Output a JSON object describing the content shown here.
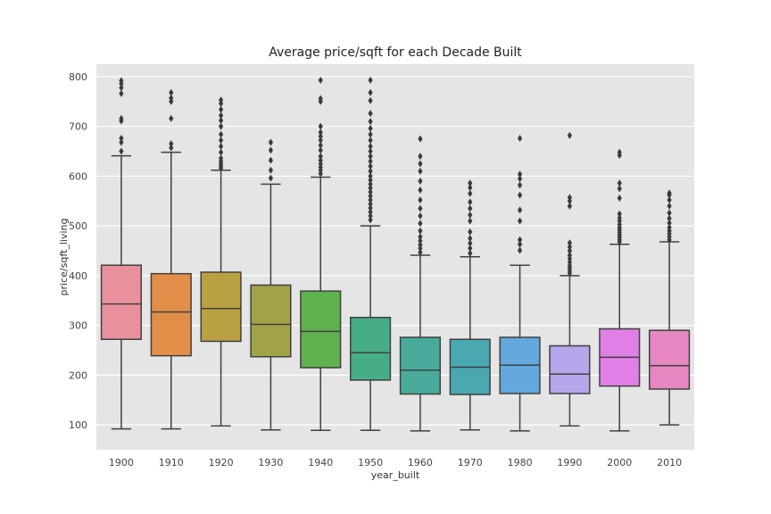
{
  "chart_data": {
    "type": "box",
    "title": "Average price/sqft for each Decade Built",
    "xlabel": "year_built",
    "ylabel": "price/sqft_living",
    "ylim": [
      50,
      825
    ],
    "yticks": [
      100,
      200,
      300,
      400,
      500,
      600,
      700,
      800
    ],
    "grid": true,
    "categories": [
      "1900",
      "1910",
      "1920",
      "1930",
      "1940",
      "1950",
      "1960",
      "1970",
      "1980",
      "1990",
      "2000",
      "2010"
    ],
    "colors": [
      "#e8909c",
      "#e38e48",
      "#b8a043",
      "#a1a347",
      "#5fb04e",
      "#47ad84",
      "#48ab9b",
      "#49a8b0",
      "#62a8dd",
      "#b6a5ea",
      "#e080e6",
      "#e687c2"
    ],
    "boxes": [
      {
        "whislo": 92,
        "q1": 272,
        "med": 343,
        "q3": 421,
        "whishi": 641,
        "fliers": [
          650,
          668,
          676,
          711,
          716,
          766,
          778,
          786,
          792
        ]
      },
      {
        "whislo": 92,
        "q1": 239,
        "med": 327,
        "q3": 404,
        "whishi": 648,
        "fliers": [
          657,
          665,
          716,
          750,
          757,
          768
        ]
      },
      {
        "whislo": 98,
        "q1": 268,
        "med": 334,
        "q3": 407,
        "whishi": 612,
        "fliers": [
          616,
          620,
          625,
          630,
          636,
          648,
          660,
          672,
          684,
          700,
          712,
          722,
          734,
          746,
          753
        ]
      },
      {
        "whislo": 90,
        "q1": 237,
        "med": 302,
        "q3": 381,
        "whishi": 584,
        "fliers": [
          596,
          612,
          632,
          652,
          668
        ]
      },
      {
        "whislo": 89,
        "q1": 215,
        "med": 288,
        "q3": 369,
        "whishi": 598,
        "fliers": [
          605,
          612,
          618,
          625,
          632,
          640,
          652,
          662,
          672,
          680,
          688,
          700,
          750,
          756,
          793
        ]
      },
      {
        "whislo": 89,
        "q1": 190,
        "med": 245,
        "q3": 316,
        "whishi": 500,
        "fliers": [
          512,
          520,
          528,
          536,
          544,
          552,
          560,
          568,
          576,
          584,
          592,
          600,
          610,
          620,
          630,
          640,
          650,
          660,
          672,
          684,
          696,
          710,
          726,
          752,
          768,
          793
        ]
      },
      {
        "whislo": 88,
        "q1": 162,
        "med": 210,
        "q3": 276,
        "whishi": 441,
        "fliers": [
          447,
          455,
          462,
          470,
          478,
          490,
          505,
          520,
          535,
          552,
          572,
          590,
          610,
          625,
          640,
          675
        ]
      },
      {
        "whislo": 90,
        "q1": 161,
        "med": 216,
        "q3": 272,
        "whishi": 438,
        "fliers": [
          445,
          455,
          465,
          475,
          488,
          510,
          522,
          535,
          548,
          565,
          577,
          586
        ]
      },
      {
        "whislo": 88,
        "q1": 163,
        "med": 220,
        "q3": 276,
        "whishi": 421,
        "fliers": [
          451,
          463,
          472,
          510,
          532,
          562,
          582,
          595,
          604,
          676
        ]
      },
      {
        "whislo": 98,
        "q1": 163,
        "med": 202,
        "q3": 259,
        "whishi": 400,
        "fliers": [
          405,
          410,
          415,
          420,
          427,
          434,
          441,
          450,
          458,
          466,
          540,
          550,
          557,
          682
        ]
      },
      {
        "whislo": 88,
        "q1": 178,
        "med": 236,
        "q3": 293,
        "whishi": 463,
        "fliers": [
          468,
          472,
          477,
          482,
          487,
          492,
          497,
          503,
          510,
          516,
          524,
          556,
          575,
          586,
          642,
          648
        ]
      },
      {
        "whislo": 100,
        "q1": 172,
        "med": 219,
        "q3": 290,
        "whishi": 468,
        "fliers": [
          472,
          478,
          484,
          490,
          497,
          506,
          515,
          526,
          540,
          552,
          562,
          566
        ]
      }
    ]
  }
}
